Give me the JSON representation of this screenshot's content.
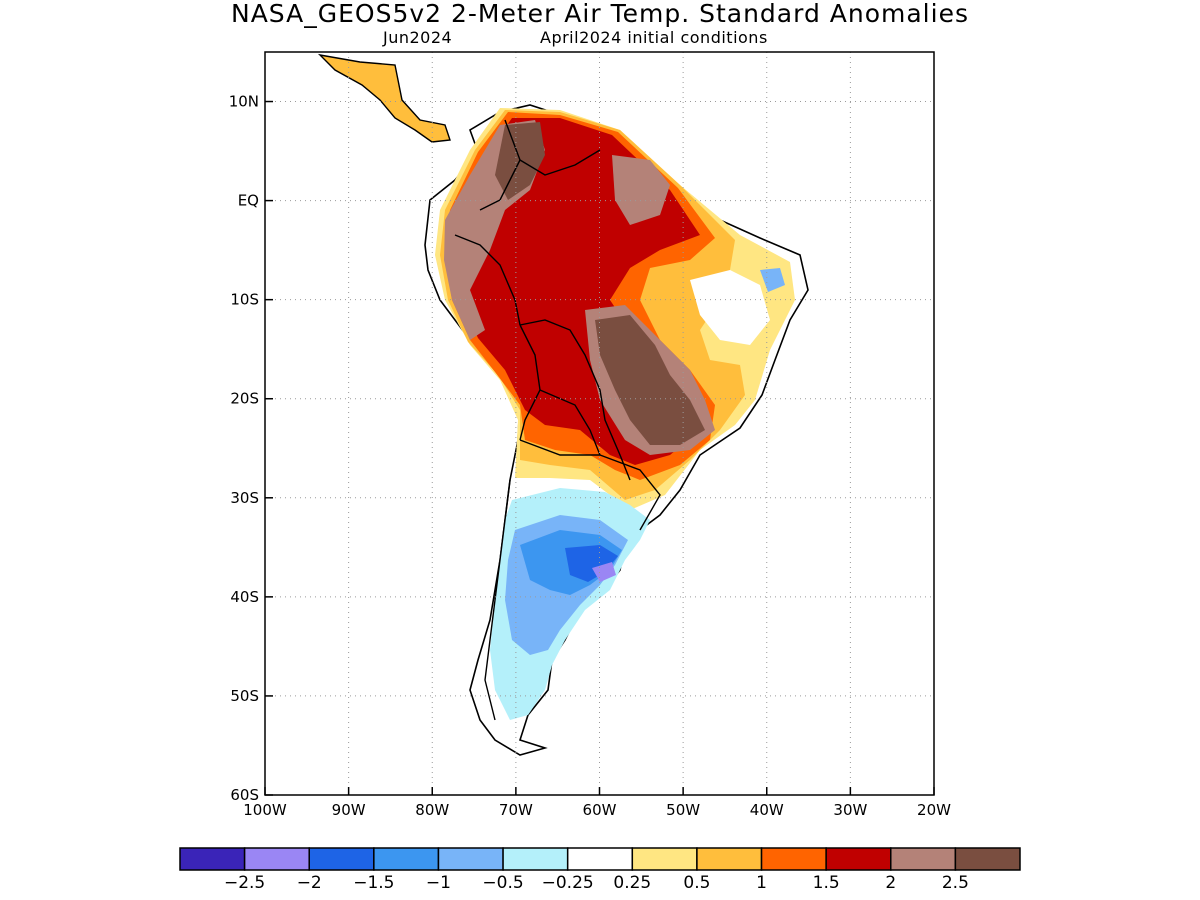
{
  "header": {
    "title": "NASA_GEOS5v2 2-Meter Air Temp. Standard Anomalies",
    "subtitle_left": "Jun2024",
    "subtitle_right": "April2024 initial conditions"
  },
  "map": {
    "region": "South America",
    "variable": "2-meter air temperature standard anomaly",
    "lon_range": [
      -100,
      -20
    ],
    "lat_range": [
      -60,
      15
    ],
    "grid": true,
    "x_ticks": [
      "100W",
      "90W",
      "80W",
      "70W",
      "60W",
      "50W",
      "40W",
      "30W",
      "20W"
    ],
    "y_ticks": [
      "10N",
      "EQ",
      "10S",
      "20S",
      "30S",
      "40S",
      "50S",
      "60S"
    ]
  },
  "colorbar": {
    "colors": [
      "#3a24b8",
      "#9a86f4",
      "#1e64e6",
      "#3c96f0",
      "#78b4f8",
      "#b4f0fa",
      "#ffffff",
      "#ffe682",
      "#ffbe3c",
      "#ff6400",
      "#c00000",
      "#b48278",
      "#7a4e40"
    ],
    "labels": [
      "−2.5",
      "−2",
      "−1.5",
      "−1",
      "−0.5",
      "−0.25",
      "0.25",
      "0.5",
      "1",
      "1.5",
      "2",
      "2.5"
    ]
  }
}
